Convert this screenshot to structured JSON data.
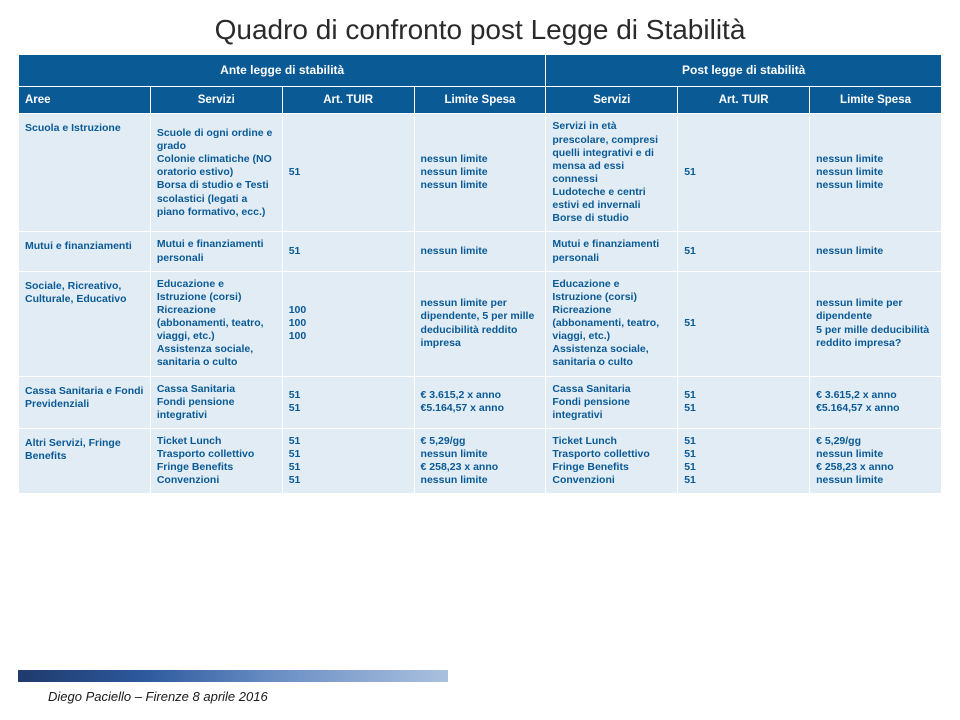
{
  "title": "Quadro di confronto post Legge di Stabilità",
  "colors": {
    "header_bg": "#0a5a96",
    "header_text": "#ffffff",
    "cell_bg": "#e1ecf4",
    "cell_text": "#0a5a96",
    "border": "#ffffff",
    "background": "#ffffff"
  },
  "super_headers": {
    "ante": "Ante legge di stabilità",
    "post": "Post legge di stabilità"
  },
  "columns": {
    "aree": "Aree",
    "servizi_ante": "Servizi",
    "art_ante": "Art. TUIR",
    "limite_ante": "Limite Spesa",
    "servizi_post": "Servizi",
    "art_post": "Art. TUIR",
    "limite_post": "Limite Spesa"
  },
  "rows": [
    {
      "area": "Scuola e Istruzione",
      "srv_ante": "Scuole di ogni ordine e grado\nColonie climatiche (NO oratorio estivo)\nBorsa di studio e Testi scolastici (legati a piano formativo, ecc.)",
      "art_ante": "51",
      "lim_ante": "nessun limite\nnessun limite\nnessun limite",
      "srv_post": "Servizi in età prescolare, compresi quelli integrativi e di mensa ad essi connessi\nLudoteche e centri estivi ed invernali\nBorse di studio",
      "art_post": "51",
      "lim_post": "nessun limite\nnessun limite\nnessun limite"
    },
    {
      "area": "Mutui e finanziamenti",
      "srv_ante": "Mutui e finanziamenti personali",
      "art_ante": "51",
      "lim_ante": "nessun limite",
      "srv_post": "Mutui e finanziamenti personali",
      "art_post": "51",
      "lim_post": "nessun limite"
    },
    {
      "area": "Sociale, Ricreativo, Culturale, Educativo",
      "srv_ante": "Educazione e Istruzione (corsi)\nRicreazione (abbonamenti, teatro, viaggi, etc.)\nAssistenza sociale, sanitaria o culto",
      "art_ante": "100\n100\n100",
      "lim_ante": "nessun limite per dipendente, 5 per mille deducibilità reddito impresa",
      "srv_post": "Educazione e Istruzione (corsi)\nRicreazione (abbonamenti, teatro, viaggi, etc.)\nAssistenza sociale, sanitaria o culto",
      "art_post": "51",
      "lim_post": "nessun limite per dipendente\n5 per mille deducibilità reddito impresa?"
    },
    {
      "area": "Cassa Sanitaria e Fondi Previdenziali",
      "srv_ante": "Cassa Sanitaria\nFondi pensione integrativi",
      "art_ante": "51\n51",
      "lim_ante": "€ 3.615,2 x anno\n€5.164,57 x anno",
      "srv_post": "Cassa Sanitaria\nFondi pensione integrativi",
      "art_post": "51\n51",
      "lim_post": "€ 3.615,2 x anno\n€5.164,57 x anno"
    },
    {
      "area": "Altri Servizi, Fringe Benefits",
      "srv_ante": "Ticket Lunch\nTrasporto collettivo\nFringe Benefits\nConvenzioni",
      "art_ante": "51\n51\n51\n51",
      "lim_ante": "€ 5,29/gg\nnessun limite\n€ 258,23 x anno\nnessun limite",
      "srv_post": "Ticket Lunch\nTrasporto collettivo\nFringe Benefits\nConvenzioni",
      "art_post": "51\n51\n51\n51",
      "lim_post": "€ 5,29/gg\nnessun limite\n€ 258,23 x anno\nnessun limite"
    }
  ],
  "footer": "Diego Paciello – Firenze 8 aprile 2016"
}
